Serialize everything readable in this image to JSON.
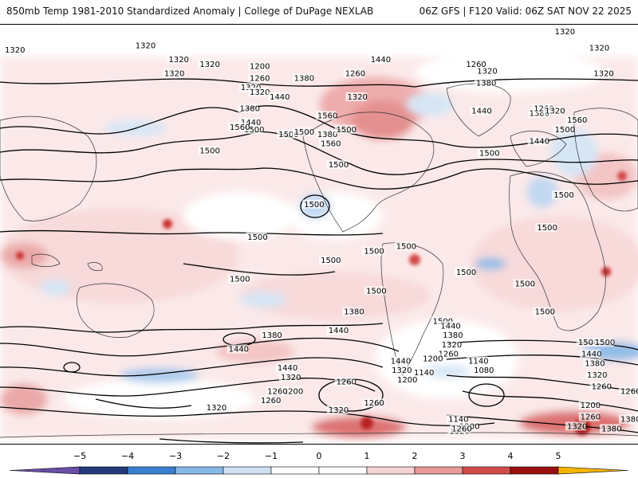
{
  "header": {
    "left_title": "850mb Temp 1981-2010 Standardized Anomaly | College of DuPage NEXLAB",
    "right_title": "06Z GFS | F120 Valid: 06Z SAT NOV 22 2025"
  },
  "map": {
    "projection": "global equirectangular",
    "contour_field": "850mb geopotential height (m)",
    "contour_labels": [
      {
        "text": "1320",
        "lon": -179,
        "lat": 78
      },
      {
        "text": "1320",
        "lon": -58,
        "lat": 80
      },
      {
        "text": "1320",
        "lon": -28,
        "lat": 74
      },
      {
        "text": "1320",
        "lon": -32,
        "lat": 68
      },
      {
        "text": "1320",
        "lon": 37,
        "lat": 62
      },
      {
        "text": "1380",
        "lon": 85,
        "lat": 66
      },
      {
        "text": "1380",
        "lon": 36,
        "lat": 53
      },
      {
        "text": "1440",
        "lon": 37,
        "lat": 47
      },
      {
        "text": "1500",
        "lon": 40,
        "lat": 44
      },
      {
        "text": "1560",
        "lon": 27,
        "lat": 45
      },
      {
        "text": "1560",
        "lon": 106,
        "lat": 50
      },
      {
        "text": "1500",
        "lon": 0,
        "lat": 35
      },
      {
        "text": "1200",
        "lon": 45,
        "lat": 71
      },
      {
        "text": "1260",
        "lon": 45,
        "lat": 66
      },
      {
        "text": "1320",
        "lon": 45,
        "lat": 60
      },
      {
        "text": "1440",
        "lon": 63,
        "lat": 58
      },
      {
        "text": "1500",
        "lon": 71,
        "lat": 42
      },
      {
        "text": "1380",
        "lon": 106,
        "lat": 42
      },
      {
        "text": "1440",
        "lon": 154,
        "lat": 74
      },
      {
        "text": "1260",
        "lon": 131,
        "lat": 68
      },
      {
        "text": "1320",
        "lon": 133,
        "lat": 58
      },
      {
        "text": "1500",
        "lon": 123,
        "lat": 44
      },
      {
        "text": "1560",
        "lon": 109,
        "lat": 38
      },
      {
        "text": "1500",
        "lon": 116,
        "lat": 29
      },
      {
        "text": "1500",
        "lon": 85,
        "lat": 43
      },
      {
        "text": "1500",
        "lon": 94,
        "lat": 12
      },
      {
        "text": "1500",
        "lon": 109,
        "lat": -12
      },
      {
        "text": "1500",
        "lon": 148,
        "lat": -8
      },
      {
        "text": "1500",
        "lon": 150,
        "lat": -25
      },
      {
        "text": "1440",
        "lon": 116,
        "lat": -42
      },
      {
        "text": "1380",
        "lon": 130,
        "lat": -34
      },
      {
        "text": "1440",
        "lon": 172,
        "lat": -55
      },
      {
        "text": "1320",
        "lon": 173,
        "lat": -59
      },
      {
        "text": "1260",
        "lon": 123,
        "lat": -64
      },
      {
        "text": "1200",
        "lon": 178,
        "lat": -63
      },
      {
        "text": "1140",
        "lon": 193,
        "lat": -60
      },
      {
        "text": "1320",
        "lon": 116,
        "lat": -76
      },
      {
        "text": "1260",
        "lon": 148,
        "lat": -73
      },
      {
        "text": "1500",
        "lon": 231,
        "lat": -17
      },
      {
        "text": "1500",
        "lon": 177,
        "lat": -6
      },
      {
        "text": "1500",
        "lon": 210,
        "lat": -38
      },
      {
        "text": "1440",
        "lon": 217,
        "lat": -40
      },
      {
        "text": "1380",
        "lon": 219,
        "lat": -44
      },
      {
        "text": "1320",
        "lon": 218,
        "lat": -48
      },
      {
        "text": "1260",
        "lon": 215,
        "lat": -52
      },
      {
        "text": "1200",
        "lon": 201,
        "lat": -54
      },
      {
        "text": "1140",
        "lon": 242,
        "lat": -55
      },
      {
        "text": "1080",
        "lon": 247,
        "lat": -59
      },
      {
        "text": "1140",
        "lon": 224,
        "lat": -80
      },
      {
        "text": "1200",
        "lon": 234,
        "lat": -83
      },
      {
        "text": "1320",
        "lon": 225,
        "lat": -85
      },
      {
        "text": "1260",
        "lon": 227,
        "lat": -84
      },
      {
        "text": "1500",
        "lon": 284,
        "lat": -22
      },
      {
        "text": "1500",
        "lon": 302,
        "lat": -34
      },
      {
        "text": "1500",
        "lon": 304,
        "lat": 2
      },
      {
        "text": "1500",
        "lon": 319,
        "lat": 16
      },
      {
        "text": "1500",
        "lon": 252,
        "lat": 34
      },
      {
        "text": "1440",
        "lon": 297,
        "lat": 39
      },
      {
        "text": "1380",
        "lon": 297,
        "lat": 51
      },
      {
        "text": "1260",
        "lon": 301,
        "lat": 53
      },
      {
        "text": "1320",
        "lon": 311,
        "lat": 52
      },
      {
        "text": "1500",
        "lon": 320,
        "lat": 44
      },
      {
        "text": "1560",
        "lon": 331,
        "lat": 48
      },
      {
        "text": "1320",
        "lon": 320,
        "lat": 88
      },
      {
        "text": "1320",
        "lon": 351,
        "lat": 79
      },
      {
        "text": "1320",
        "lon": 355,
        "lat": 68
      },
      {
        "text": "1320",
        "lon": 0,
        "lat": 72
      },
      {
        "text": "1500",
        "lon": 341,
        "lat": -47
      },
      {
        "text": "1440",
        "lon": 344,
        "lat": -52
      },
      {
        "text": "1380",
        "lon": 347,
        "lat": -56
      },
      {
        "text": "1320",
        "lon": 349,
        "lat": -61
      },
      {
        "text": "1260",
        "lon": 353,
        "lat": -66
      },
      {
        "text": "1200",
        "lon": 343,
        "lat": -74
      },
      {
        "text": "1260",
        "lon": 343,
        "lat": -79
      },
      {
        "text": "1320",
        "lon": 331,
        "lat": -83
      },
      {
        "text": "1380",
        "lon": 362,
        "lat": -84
      },
      {
        "text": "1500",
        "lon": 356,
        "lat": -47
      },
      {
        "text": "1380",
        "lon": 393,
        "lat": -80
      },
      {
        "text": "1260",
        "lon": 380,
        "lat": -68
      },
      {
        "text": "1320",
        "lon": 6,
        "lat": -75
      },
      {
        "text": "1260",
        "lon": 55,
        "lat": -72
      },
      {
        "text": "1200",
        "lon": 75,
        "lat": -68
      },
      {
        "text": "1320",
        "lon": 73,
        "lat": -62
      },
      {
        "text": "1440",
        "lon": 70,
        "lat": -58
      },
      {
        "text": "1260",
        "lon": 61,
        "lat": -68
      },
      {
        "text": "1440",
        "lon": 26,
        "lat": -50
      },
      {
        "text": "1380",
        "lon": 56,
        "lat": -44
      },
      {
        "text": "1500",
        "lon": 27,
        "lat": -20
      },
      {
        "text": "1500",
        "lon": 43,
        "lat": -2
      },
      {
        "text": "1320",
        "lon": 250,
        "lat": 69
      },
      {
        "text": "1380",
        "lon": 249,
        "lat": 64
      },
      {
        "text": "1440",
        "lon": 245,
        "lat": 52
      },
      {
        "text": "1260",
        "lon": 240,
        "lat": 72
      }
    ]
  },
  "colorbar": {
    "ticks": [
      "−5",
      "−4",
      "−3",
      "−2",
      "−1",
      "0",
      "1",
      "2",
      "3",
      "4",
      "5"
    ],
    "colors": [
      "#6a4fa8",
      "#253a7a",
      "#3a7fd0",
      "#86b7e6",
      "#cfe2f4",
      "#ffffff",
      "#ffffff",
      "#f6d3d3",
      "#e89a9a",
      "#d24a4a",
      "#9a1010",
      "#f4b400"
    ]
  }
}
